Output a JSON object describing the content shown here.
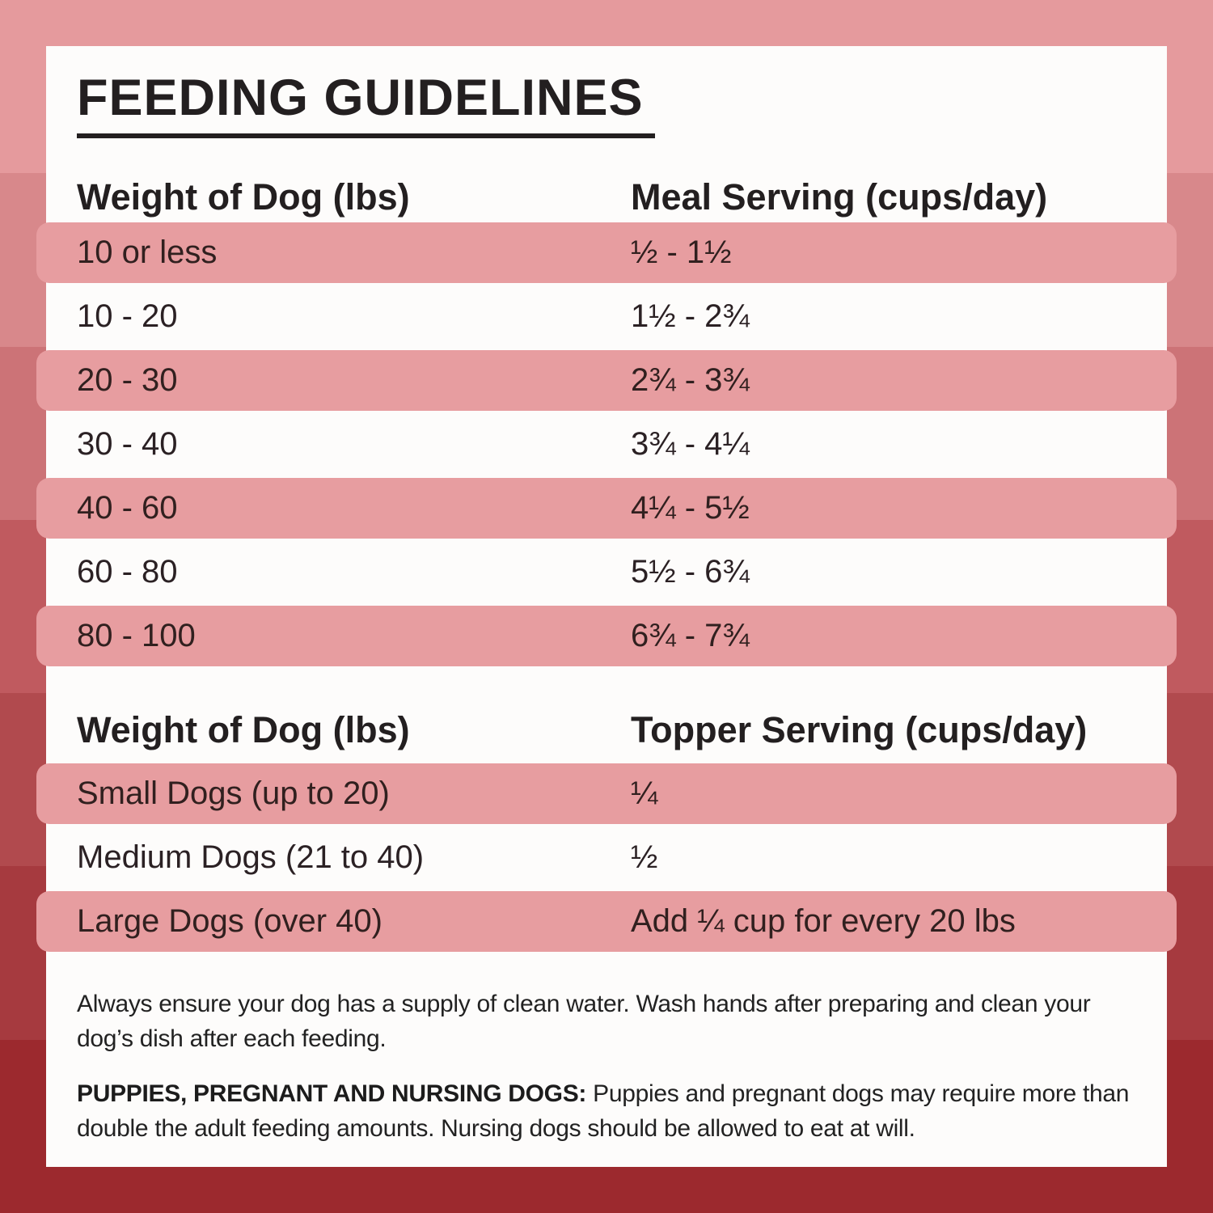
{
  "title": "FEEDING GUIDELINES",
  "colors": {
    "card_background": "#fdfcfb",
    "row_highlight_pink": "#e79da0",
    "text_dark": "#231f20",
    "border_bands": [
      "#e59a9d",
      "#d8888b",
      "#cc7377",
      "#c05a5f",
      "#b14a4e",
      "#a63a3f",
      "#9c292e"
    ]
  },
  "meal_table": {
    "col1_header": "Weight of Dog (lbs)",
    "col2_header": "Meal Serving (cups/day)",
    "rows": [
      {
        "weight": "10 or less",
        "serving": "½ - 1½"
      },
      {
        "weight": "10 - 20",
        "serving": "1½ - 2¾"
      },
      {
        "weight": "20 - 30",
        "serving": "2¾ - 3¾"
      },
      {
        "weight": "30 - 40",
        "serving": "3¾ - 4¼"
      },
      {
        "weight": "40 - 60",
        "serving": "4¼ - 5½"
      },
      {
        "weight": "60 - 80",
        "serving": "5½ - 6¾"
      },
      {
        "weight": "80 - 100",
        "serving": "6¾ - 7¾"
      }
    ]
  },
  "topper_table": {
    "col1_header": "Weight of Dog (lbs)",
    "col2_header": "Topper Serving (cups/day)",
    "rows": [
      {
        "weight": "Small Dogs (up to 20)",
        "serving": "¼"
      },
      {
        "weight": "Medium Dogs (21 to 40)",
        "serving": "½"
      },
      {
        "weight": "Large Dogs (over 40)",
        "serving": "Add ¼ cup for every 20 lbs"
      }
    ]
  },
  "notes": {
    "water": "Always ensure your dog has a supply of clean water. Wash hands after preparing and clean your dog’s dish after each feeding.",
    "puppies_label": "PUPPIES, PREGNANT AND NURSING DOGS:",
    "puppies_text": " Puppies and pregnant dogs may require more than double the adult feeding amounts. Nursing dogs should be allowed to eat at will."
  }
}
